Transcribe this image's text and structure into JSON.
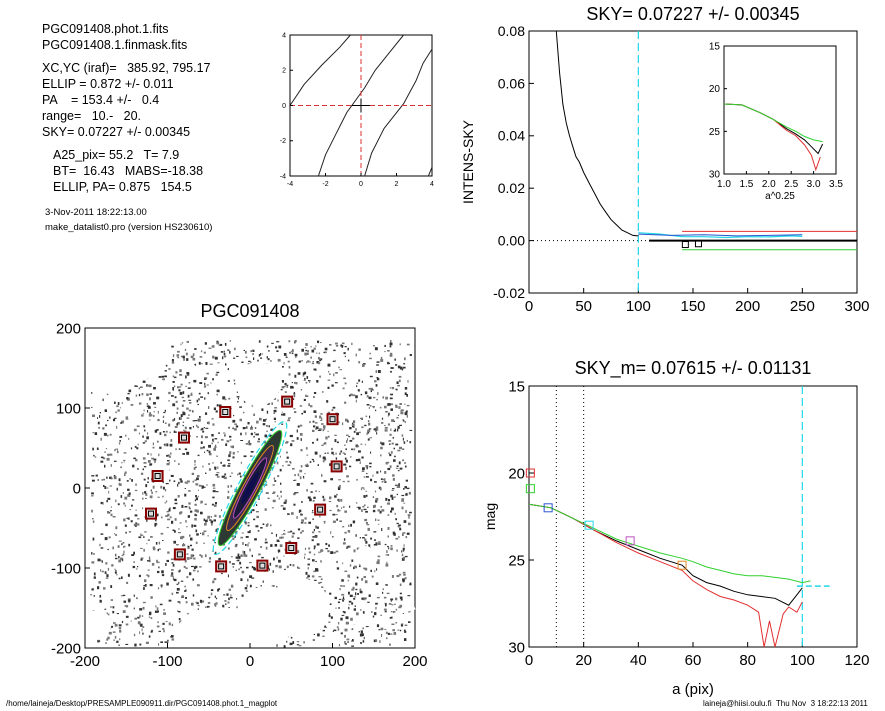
{
  "info": {
    "file1": "PGC091408.phot.1.fits",
    "file2": "PGC091408.1.finmask.fits",
    "xcyc": "XC,YC (iraf)=   385.92, 795.17",
    "ellip": "ELLIP = 0.872 +/- 0.011",
    "pa": "PA    = 153.4 +/-   0.4",
    "range": "range=   10.-   20.",
    "sky": "SKY= 0.07227 +/- 0.00345",
    "a25": "A25_pix= 55.2   T= 7.9",
    "bt": "BT=  16.43   MABS=-18.38",
    "ellip_pa": "ELLIP, PA= 0.875   154.5",
    "date": "3-Nov-2011 18:22:13.00",
    "program": "make_datalist0.pro (version HS230610)"
  },
  "footer": {
    "path": "/home/laineja/Desktop/PRESAMPLE090911.dir/PGC091408.phot.1_magplot",
    "user": "laineja@hiisi.oulu.fi  Thu Nov  3 18:22:13 2011"
  },
  "colors": {
    "cyan": "#22d8e8",
    "red": "#e23030",
    "green": "#30d030",
    "blue": "#2a55cc",
    "magenta": "#c050c0",
    "orange": "#e08a20",
    "dark_red": "#8a0000"
  },
  "chart_data": [
    {
      "id": "contour",
      "type": "line",
      "xlim": [
        -4,
        4
      ],
      "ylim": [
        -4,
        4
      ],
      "xticks": [
        "-4",
        "-2",
        "0",
        "2",
        "4"
      ],
      "yticks": [
        "-4",
        "-2",
        "0",
        "2",
        "4"
      ],
      "series": [
        {
          "x": [
            -4,
            -3.2,
            -2.2,
            -1.2,
            -0.6
          ],
          "y": [
            0,
            1.2,
            2.3,
            3.3,
            4
          ]
        },
        {
          "x": [
            -2.4,
            -2,
            -1.4,
            -0.8,
            0.2,
            0.8,
            1.6,
            2.4
          ],
          "y": [
            -4,
            -2.8,
            -1.6,
            -0.4,
            1,
            2,
            3,
            4
          ]
        },
        {
          "x": [
            0.2,
            0.6,
            1.3,
            2.4,
            3.1,
            3.5,
            4
          ],
          "y": [
            -4,
            -2.7,
            -1.3,
            0.1,
            1.4,
            2.4,
            3.2
          ]
        },
        {
          "x": [
            3.8,
            4
          ],
          "y": [
            -4,
            -3.5
          ]
        }
      ]
    },
    {
      "id": "sky",
      "type": "line",
      "title": "SKY= 0.07227 +/- 0.00345",
      "ylabel": "INTENS-SKY",
      "xlim": [
        0,
        300
      ],
      "ylim": [
        -0.02,
        0.08
      ],
      "xticks": [
        "0",
        "50",
        "100",
        "150",
        "200",
        "250",
        "300"
      ],
      "yticks": [
        "-0.02",
        "0.00",
        "0.02",
        "0.04",
        "0.06",
        "0.08"
      ],
      "series": [
        {
          "x": [
            25,
            28,
            31,
            34,
            37,
            40,
            43,
            46,
            50,
            55,
            60,
            65,
            70,
            75,
            80,
            85,
            90,
            95,
            100
          ],
          "y": [
            0.08,
            0.064,
            0.052,
            0.045,
            0.04,
            0.036,
            0.032,
            0.03,
            0.026,
            0.022,
            0.018,
            0.014,
            0.011,
            0.008,
            0.006,
            0.004,
            0.003,
            0.002,
            0.0018
          ]
        },
        {
          "x": [
            100,
            120,
            140,
            160,
            180,
            200,
            220,
            240,
            250
          ],
          "y": [
            0.003,
            0.0025,
            0.0015,
            0.0015,
            0.0012,
            0.0015,
            0.0014,
            0.0018,
            0.0016
          ]
        },
        {
          "x": [
            100,
            130,
            160,
            190,
            220,
            250
          ],
          "y": [
            0.0025,
            0.002,
            0.0022,
            0.0018,
            0.002,
            0.0022
          ]
        },
        {
          "x": [
            140,
            300
          ],
          "y": [
            0.0035,
            0.0035
          ]
        },
        {
          "x": [
            140,
            300
          ],
          "y": [
            -0.0035,
            -0.0035
          ]
        },
        {
          "x": [
            0,
            300
          ],
          "y": [
            0,
            0
          ]
        }
      ],
      "vline": 100,
      "markers": [
        [
          143,
          -0.0015
        ],
        [
          155,
          -0.0012
        ]
      ],
      "inset": {
        "xlabel": "a^0.25",
        "xlim": [
          1.0,
          3.5
        ],
        "ylim": [
          30,
          15
        ],
        "xticks": [
          "1.0",
          "1.5",
          "2.0",
          "2.5",
          "3.0",
          "3.5"
        ],
        "yticks": [
          "15",
          "20",
          "25",
          "30"
        ],
        "series": [
          {
            "x": [
              1.0,
              1.4,
              1.8,
              2.1,
              2.4,
              2.6,
              2.8,
              2.95,
              3.1,
              3.2
            ],
            "y": [
              21.8,
              21.9,
              22.8,
              23.6,
              24.7,
              25.3,
              26.0,
              26.8,
              27.6,
              26.5
            ]
          },
          {
            "x": [
              1.0,
              1.4,
              1.8,
              2.1,
              2.4,
              2.6,
              2.8,
              2.95,
              3.05,
              3.15
            ],
            "y": [
              21.8,
              21.9,
              22.8,
              23.6,
              24.9,
              25.5,
              26.6,
              27.8,
              29.5,
              28.0
            ]
          },
          {
            "x": [
              1.0,
              1.4,
              1.8,
              2.1,
              2.4,
              2.6,
              2.8,
              3.0,
              3.2
            ],
            "y": [
              21.8,
              21.9,
              22.8,
              23.6,
              24.5,
              25.0,
              25.6,
              26.0,
              26.2
            ]
          }
        ]
      }
    },
    {
      "id": "image",
      "type": "scatter",
      "title": "PGC091408",
      "xlim": [
        -200,
        200
      ],
      "ylim": [
        -200,
        200
      ],
      "xticks": [
        "-200",
        "-100",
        "0",
        "100",
        "200"
      ],
      "yticks": [
        "-200",
        "-100",
        "0",
        "100",
        "200"
      ],
      "markers": [
        [
          -30,
          95
        ],
        [
          45,
          108
        ],
        [
          -80,
          63
        ],
        [
          100,
          86
        ],
        [
          -112,
          15
        ],
        [
          105,
          27
        ],
        [
          -120,
          -32
        ],
        [
          85,
          -27
        ],
        [
          -85,
          -83
        ],
        [
          50,
          -75
        ],
        [
          -35,
          -98
        ],
        [
          15,
          -97
        ]
      ]
    },
    {
      "id": "profile",
      "type": "line",
      "title": "SKY_m=  0.07615 +/- 0.01131",
      "xlabel": "a (pix)",
      "ylabel": "mag",
      "xlim": [
        0,
        120
      ],
      "ylim": [
        30,
        15
      ],
      "xticks": [
        "0",
        "20",
        "40",
        "60",
        "80",
        "100",
        "120"
      ],
      "yticks": [
        "15",
        "20",
        "25",
        "30"
      ],
      "vlines": [
        10,
        20,
        100
      ],
      "series": [
        {
          "name": "black",
          "x": [
            0,
            8,
            16,
            24,
            32,
            40,
            48,
            56,
            60,
            65,
            70,
            75,
            80,
            85,
            90,
            95,
            98,
            100
          ],
          "y": [
            21.8,
            22.0,
            22.6,
            23.3,
            23.9,
            24.4,
            24.9,
            25.3,
            25.9,
            26.3,
            26.5,
            26.8,
            27.0,
            27.1,
            27.2,
            27.6,
            27.0,
            26.6
          ]
        },
        {
          "name": "red",
          "x": [
            0,
            8,
            16,
            24,
            32,
            40,
            48,
            56,
            60,
            65,
            70,
            75,
            80,
            84,
            86,
            88,
            90,
            93,
            95,
            98,
            100
          ],
          "y": [
            21.8,
            22.0,
            22.6,
            23.3,
            24.0,
            24.6,
            25.1,
            25.6,
            26.2,
            26.7,
            27.1,
            27.3,
            27.6,
            28.0,
            30,
            28.5,
            30,
            28.1,
            27.7,
            28.0,
            27.4
          ]
        },
        {
          "name": "green",
          "x": [
            0,
            8,
            16,
            24,
            32,
            40,
            48,
            56,
            60,
            65,
            70,
            75,
            80,
            85,
            90,
            95,
            100,
            103
          ],
          "y": [
            21.8,
            22.0,
            22.6,
            23.2,
            23.8,
            24.2,
            24.6,
            24.9,
            25.1,
            25.4,
            25.6,
            25.8,
            25.9,
            25.9,
            26.0,
            26.1,
            26.3,
            26.2
          ]
        }
      ],
      "markers": [
        {
          "x": 0.5,
          "y": 20.0,
          "color": "red"
        },
        {
          "x": 0.5,
          "y": 20.9,
          "color": "green"
        },
        {
          "x": 7,
          "y": 22.0,
          "color": "blue"
        },
        {
          "x": 22,
          "y": 23.0,
          "color": "cyan"
        },
        {
          "x": 37,
          "y": 23.9,
          "color": "magenta"
        },
        {
          "x": 56,
          "y": 25.3,
          "color": "orange"
        }
      ],
      "sky_level": {
        "x": [
          98,
          110
        ],
        "y": [
          26.5,
          26.5
        ]
      }
    }
  ]
}
